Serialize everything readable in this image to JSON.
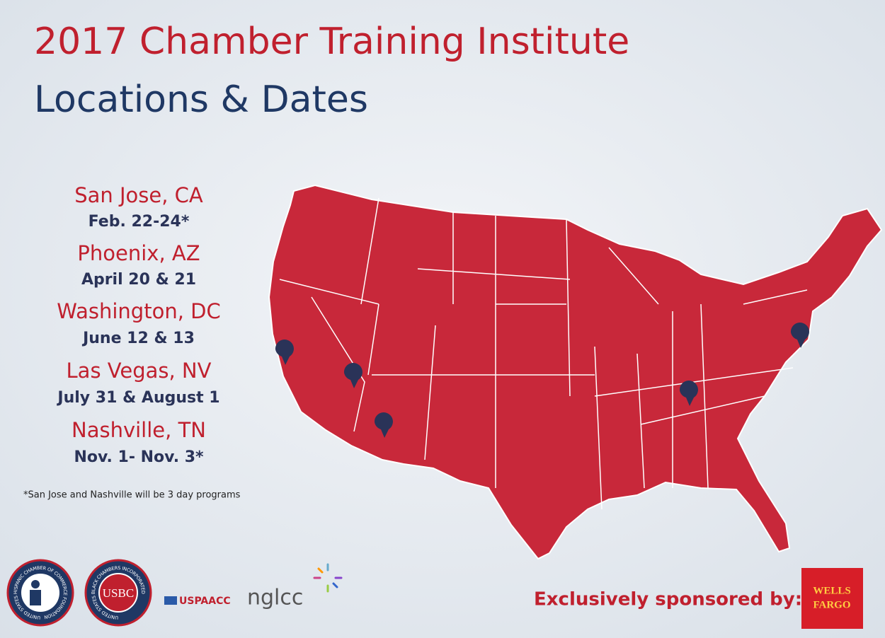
{
  "title": {
    "line1": "2017 Chamber Training Institute",
    "line2": "Locations & Dates"
  },
  "locations": [
    {
      "name": "San Jose, CA",
      "dates": "Feb. 22-24*"
    },
    {
      "name": "Phoenix, AZ",
      "dates": "April 20 & 21"
    },
    {
      "name": "Washington, DC",
      "dates": "June 12 & 13"
    },
    {
      "name": "Las Vegas, NV",
      "dates": "July 31 & August 1"
    },
    {
      "name": "Nashville, TN",
      "dates": "Nov. 1- Nov. 3*"
    }
  ],
  "footnote": "*San Jose and Nashville will be 3 day programs",
  "logos": {
    "hispanic_ring": "UNITED STATES HISPANIC CHAMBER OF COMMERCE FOUNDATION",
    "usbc_ring": "UNITED STATES BLACK CHAMBERS INCORPORATED",
    "usbc": "USBC",
    "uspaacc": "USPAACC",
    "nglcc": "nglcc"
  },
  "sponsor": {
    "text": "Exclusively sponsored by:",
    "logo_lines": [
      "WELLS",
      "FARGO"
    ]
  }
}
